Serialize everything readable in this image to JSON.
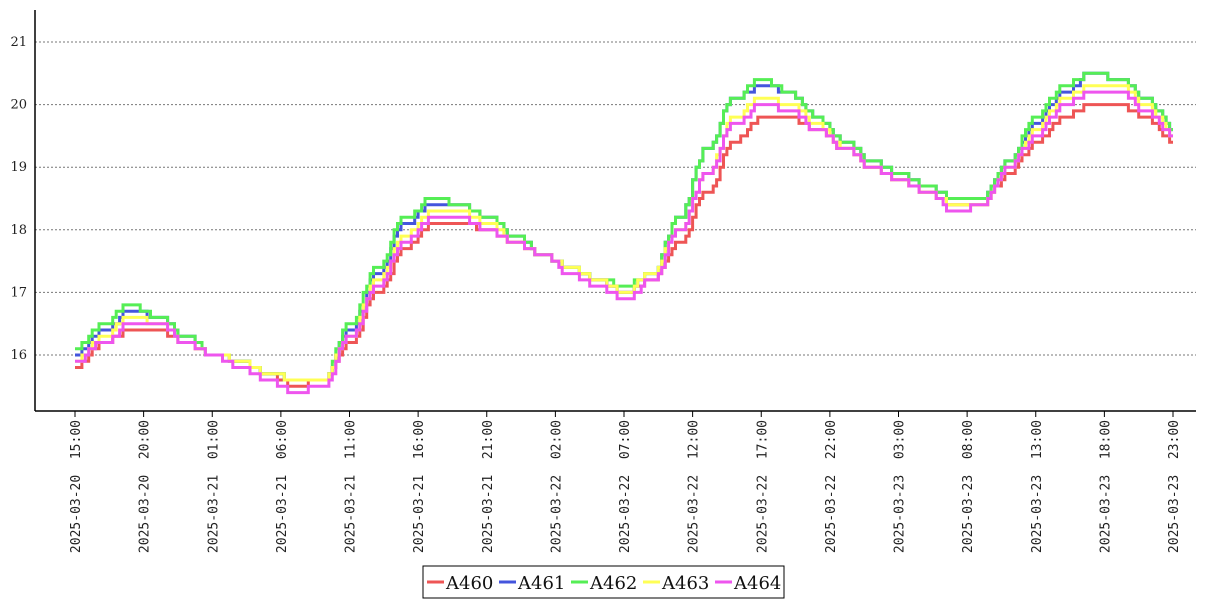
{
  "chart_data": {
    "type": "line",
    "title": "",
    "xlabel": "",
    "ylabel": "",
    "ylim": [
      15.1,
      21.5
    ],
    "yticks": [
      16,
      17,
      18,
      19,
      20,
      21
    ],
    "grid": "horizontal dotted",
    "legend_position": "bottom-center",
    "x_tick_labels": [
      "2025-03-20  15:00",
      "2025-03-20  20:00",
      "2025-03-21  01:00",
      "2025-03-21  06:00",
      "2025-03-21  11:00",
      "2025-03-21  16:00",
      "2025-03-21  21:00",
      "2025-03-22  02:00",
      "2025-03-22  07:00",
      "2025-03-22  12:00",
      "2025-03-22  17:00",
      "2025-03-22  22:00",
      "2025-03-23  03:00",
      "2025-03-23  08:00",
      "2025-03-23  13:00",
      "2025-03-23  18:00",
      "2025-03-23  23:00"
    ],
    "x": [
      "2025-03-20 15:00",
      "2025-03-20 17:00",
      "2025-03-20 19:00",
      "2025-03-20 21:00",
      "2025-03-20 23:00",
      "2025-03-21 01:00",
      "2025-03-21 03:00",
      "2025-03-21 05:00",
      "2025-03-21 07:00",
      "2025-03-21 09:00",
      "2025-03-21 11:00",
      "2025-03-21 13:00",
      "2025-03-21 15:00",
      "2025-03-21 17:00",
      "2025-03-21 19:00",
      "2025-03-21 21:00",
      "2025-03-21 23:00",
      "2025-03-22 01:00",
      "2025-03-22 03:00",
      "2025-03-22 05:00",
      "2025-03-22 07:00",
      "2025-03-22 09:00",
      "2025-03-22 11:00",
      "2025-03-22 13:00",
      "2025-03-22 15:00",
      "2025-03-22 17:00",
      "2025-03-22 19:00",
      "2025-03-22 21:00",
      "2025-03-22 23:00",
      "2025-03-23 01:00",
      "2025-03-23 03:00",
      "2025-03-23 05:00",
      "2025-03-23 07:00",
      "2025-03-23 09:00",
      "2025-03-23 11:00",
      "2025-03-23 13:00",
      "2025-03-23 15:00",
      "2025-03-23 17:00",
      "2025-03-23 19:00",
      "2025-03-23 21:00",
      "2025-03-23 23:00"
    ],
    "series": [
      {
        "name": "A460",
        "color": "#ee5555",
        "values": [
          15.8,
          16.2,
          16.4,
          16.4,
          16.2,
          16.0,
          15.9,
          15.7,
          15.5,
          15.6,
          16.2,
          17.0,
          17.7,
          18.1,
          18.1,
          18.0,
          17.8,
          17.6,
          17.4,
          17.2,
          17.0,
          17.2,
          17.8,
          18.6,
          19.4,
          19.8,
          19.8,
          19.6,
          19.3,
          19.0,
          18.8,
          18.6,
          18.4,
          18.4,
          18.9,
          19.4,
          19.8,
          20.0,
          20.0,
          19.8,
          19.4
        ]
      },
      {
        "name": "A461",
        "color": "#4455dd",
        "values": [
          16.0,
          16.4,
          16.7,
          16.6,
          16.3,
          16.0,
          15.9,
          15.7,
          15.6,
          15.6,
          16.4,
          17.3,
          18.1,
          18.4,
          18.4,
          18.2,
          17.9,
          17.6,
          17.4,
          17.2,
          17.0,
          17.3,
          18.2,
          19.3,
          20.1,
          20.3,
          20.2,
          19.8,
          19.4,
          19.1,
          18.9,
          18.7,
          18.5,
          18.5,
          19.1,
          19.7,
          20.2,
          20.5,
          20.4,
          20.1,
          19.6
        ]
      },
      {
        "name": "A462",
        "color": "#55ee55",
        "values": [
          16.1,
          16.5,
          16.8,
          16.6,
          16.3,
          16.0,
          15.9,
          15.7,
          15.6,
          15.6,
          16.5,
          17.4,
          18.2,
          18.5,
          18.4,
          18.2,
          17.9,
          17.6,
          17.4,
          17.2,
          17.1,
          17.3,
          18.2,
          19.3,
          20.1,
          20.4,
          20.2,
          19.8,
          19.4,
          19.1,
          18.9,
          18.7,
          18.5,
          18.5,
          19.1,
          19.8,
          20.3,
          20.5,
          20.4,
          20.1,
          19.6
        ]
      },
      {
        "name": "A463",
        "color": "#ffff55",
        "values": [
          15.9,
          16.3,
          16.6,
          16.5,
          16.2,
          16.0,
          15.9,
          15.7,
          15.6,
          15.6,
          16.3,
          17.2,
          17.9,
          18.3,
          18.3,
          18.1,
          17.8,
          17.6,
          17.4,
          17.2,
          17.0,
          17.3,
          18.0,
          18.9,
          19.8,
          20.1,
          20.0,
          19.7,
          19.3,
          19.0,
          18.8,
          18.6,
          18.4,
          18.4,
          19.0,
          19.6,
          20.1,
          20.3,
          20.3,
          20.0,
          19.5
        ]
      },
      {
        "name": "A464",
        "color": "#ee55ee",
        "values": [
          15.9,
          16.2,
          16.5,
          16.5,
          16.2,
          16.0,
          15.8,
          15.6,
          15.4,
          15.5,
          16.3,
          17.1,
          17.8,
          18.2,
          18.2,
          18.0,
          17.8,
          17.6,
          17.3,
          17.1,
          16.9,
          17.2,
          18.0,
          18.9,
          19.7,
          20.0,
          19.9,
          19.6,
          19.3,
          19.0,
          18.8,
          18.6,
          18.3,
          18.4,
          19.0,
          19.5,
          20.0,
          20.2,
          20.2,
          19.9,
          19.5
        ]
      }
    ]
  }
}
